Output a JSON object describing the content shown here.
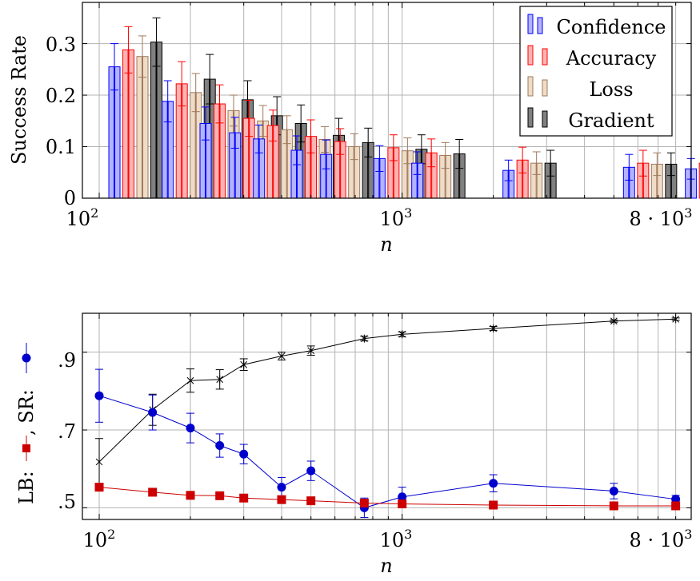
{
  "chart_data": [
    {
      "type": "bar",
      "xscale": "log",
      "xlim": [
        88,
        9000
      ],
      "ylim": [
        0,
        0.38
      ],
      "x_tick_labels": [
        "10",
        "2",
        "10",
        "3",
        "8 · 10",
        "3"
      ],
      "y_tick_labels": [
        "0",
        "0.1",
        "0.2",
        "0.3"
      ],
      "xlabel": "n",
      "ylabel": "Success Rate",
      "grid": true,
      "legend": "top-right",
      "x": [
        100,
        150,
        200,
        250,
        300,
        400,
        500,
        750,
        1000,
        2000,
        5000,
        8000
      ],
      "series": [
        {
          "name": "Confidence",
          "color": "#0000ff",
          "fill": "#b3b3ff",
          "values": [
            0.255,
            0.188,
            0.145,
            0.127,
            0.115,
            0.093,
            0.085,
            0.077,
            0.068,
            0.054,
            0.06,
            0.057
          ],
          "errors": [
            0.045,
            0.04,
            0.032,
            0.03,
            0.027,
            0.028,
            0.028,
            0.025,
            0.022,
            0.02,
            0.025,
            0.02
          ]
        },
        {
          "name": "Accuracy",
          "color": "#ff0000",
          "fill": "#ffb3b3",
          "values": [
            0.288,
            0.222,
            0.183,
            0.155,
            0.141,
            0.12,
            0.11,
            0.098,
            0.088,
            0.074,
            0.068,
            0.068
          ],
          "errors": [
            0.045,
            0.043,
            0.037,
            0.035,
            0.03,
            0.032,
            0.025,
            0.025,
            0.027,
            0.025,
            0.025,
            0.022
          ]
        },
        {
          "name": "Loss",
          "color": "#a0785a",
          "fill": "#eedcc8",
          "values": [
            0.275,
            0.205,
            0.17,
            0.15,
            0.133,
            0.114,
            0.1,
            0.092,
            0.083,
            0.068,
            0.066,
            0.063
          ],
          "errors": [
            0.04,
            0.037,
            0.03,
            0.03,
            0.027,
            0.025,
            0.025,
            0.025,
            0.025,
            0.022,
            0.022,
            0.02
          ]
        },
        {
          "name": "Gradient",
          "color": "#000000",
          "fill": "#808080",
          "values": [
            0.303,
            0.231,
            0.191,
            0.16,
            0.145,
            0.122,
            0.108,
            0.095,
            0.086,
            0.068,
            0.066,
            0.065
          ],
          "errors": [
            0.047,
            0.048,
            0.037,
            0.037,
            0.036,
            0.033,
            0.028,
            0.028,
            0.028,
            0.025,
            0.022,
            0.022
          ]
        }
      ]
    },
    {
      "type": "line",
      "xscale": "log",
      "xlim": [
        88,
        9000
      ],
      "ylim": [
        0.47,
        1.0
      ],
      "x_tick_labels": [
        "10",
        "2",
        "10",
        "3",
        "8 · 10",
        "3"
      ],
      "y_tick_labels": [
        ".5",
        ".7",
        ".9"
      ],
      "xlabel": "n",
      "ylabel_parts": [
        "LB: ",
        ", SR: "
      ],
      "grid": true,
      "x": [
        100,
        150,
        200,
        250,
        300,
        400,
        500,
        750,
        1000,
        2000,
        5000,
        8000
      ],
      "series": [
        {
          "color": "#000000",
          "marker": "star",
          "values": [
            0.618,
            0.752,
            0.827,
            0.83,
            0.868,
            0.89,
            0.904,
            0.935,
            0.946,
            0.961,
            0.98,
            0.985
          ],
          "errors": [
            0.06,
            0.04,
            0.03,
            0.025,
            0.015,
            0.01,
            0.012,
            0.006,
            0.006,
            0.005,
            0.003,
            0.003
          ]
        },
        {
          "color": "#0000cc",
          "marker": "circle",
          "values": [
            0.788,
            0.745,
            0.705,
            0.66,
            0.638,
            0.553,
            0.595,
            0.5,
            0.528,
            0.563,
            0.543,
            0.522
          ],
          "errors": [
            0.068,
            0.045,
            0.038,
            0.03,
            0.025,
            0.025,
            0.025,
            0.025,
            0.025,
            0.022,
            0.02,
            0.01
          ]
        },
        {
          "color": "#cc0000",
          "marker": "square",
          "values": [
            0.553,
            0.54,
            0.532,
            0.531,
            0.525,
            0.521,
            0.518,
            0.512,
            0.51,
            0.507,
            0.505,
            0.505
          ],
          "errors": [
            0,
            0,
            0,
            0,
            0,
            0,
            0,
            0,
            0,
            0,
            0,
            0
          ]
        }
      ]
    }
  ]
}
